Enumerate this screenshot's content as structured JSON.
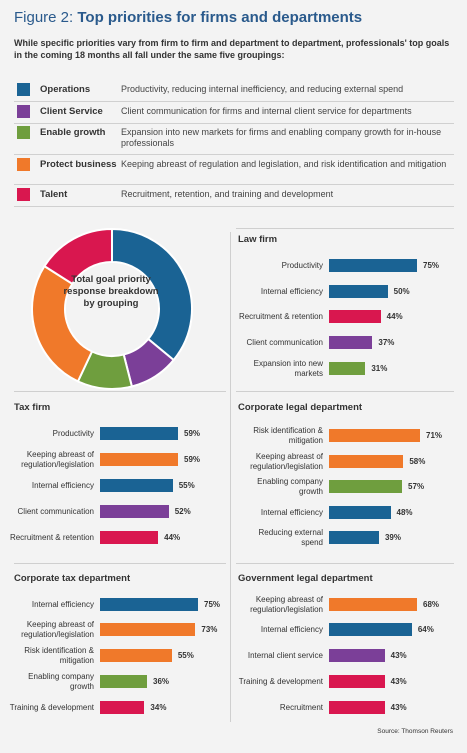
{
  "figure": {
    "prefix": "Figure 2: ",
    "title": "Top priorities for firms and departments",
    "intro": "While specific priorities vary from firm to firm and department to department, professionals' top goals in the coming 18 months all fall under the same five groupings:",
    "source": "Source: Thomson Reuters"
  },
  "colors": {
    "Operations": "#1a6394",
    "Client Service": "#7b3f98",
    "Enable growth": "#6f9e3e",
    "Protect business": "#f0792a",
    "Talent": "#d9174f"
  },
  "legend": [
    {
      "name": "Operations",
      "desc": "Productivity, reducing internal inefficiency, and reducing external spend"
    },
    {
      "name": "Client Service",
      "desc": "Client communication for firms and internal client service for departments"
    },
    {
      "name": "Enable growth",
      "desc": "Expansion into new markets for firms and enabling company growth for in-house professionals"
    },
    {
      "name": "Protect business",
      "desc": "Keeping abreast of regulation and legislation, and risk identification and mitigation"
    },
    {
      "name": "Talent",
      "desc": "Recruitment, retention, and training and development"
    }
  ],
  "chart_data": [
    {
      "type": "pie",
      "title": "Total goal priority response breakdown by grouping",
      "categories": [
        "Operations",
        "Client Service",
        "Enable growth",
        "Protect business",
        "Talent"
      ],
      "values": [
        36,
        10,
        11,
        27,
        16
      ]
    },
    {
      "type": "bar",
      "title": "Law firm",
      "categories": [
        "Productivity",
        "Internal efficiency",
        "Recruitment & retention",
        "Client communication",
        "Expansion into new markets"
      ],
      "values": [
        75,
        50,
        44,
        37,
        31
      ],
      "labels": [
        "75%",
        "50%",
        "44%",
        "37%",
        "31%"
      ],
      "groups": [
        "Operations",
        "Operations",
        "Talent",
        "Client Service",
        "Enable growth"
      ]
    },
    {
      "type": "bar",
      "title": "Tax firm",
      "categories": [
        "Productivity",
        "Keeping abreast of regulation/legislation",
        "Internal efficiency",
        "Client communication",
        "Recruitment & retention"
      ],
      "values": [
        59,
        59,
        55,
        52,
        44
      ],
      "labels": [
        "59%",
        "59%",
        "55%",
        "52%",
        "44%"
      ],
      "groups": [
        "Operations",
        "Protect business",
        "Operations",
        "Client Service",
        "Talent"
      ]
    },
    {
      "type": "bar",
      "title": "Corporate legal department",
      "categories": [
        "Risk identification & mitigation",
        "Keeping abreast of regulation/legislation",
        "Enabling company growth",
        "Internal efficiency",
        "Reducing external spend"
      ],
      "values": [
        71,
        58,
        57,
        48,
        39
      ],
      "labels": [
        "71%",
        "58%",
        "57%",
        "48%",
        "39%"
      ],
      "groups": [
        "Protect business",
        "Protect business",
        "Enable growth",
        "Operations",
        "Operations"
      ]
    },
    {
      "type": "bar",
      "title": "Corporate tax department",
      "categories": [
        "Internal efficiency",
        "Keeping abreast of regulation/legislation",
        "Risk identification & mitigation",
        "Enabling company growth",
        "Training & development"
      ],
      "values": [
        75,
        73,
        55,
        36,
        34
      ],
      "labels": [
        "75%",
        "73%",
        "55%",
        "36%",
        "34%"
      ],
      "groups": [
        "Operations",
        "Protect business",
        "Protect business",
        "Enable growth",
        "Talent"
      ]
    },
    {
      "type": "bar",
      "title": "Government legal department",
      "categories": [
        "Keeping abreast of regulation/legislation",
        "Internal efficiency",
        "Internal client service",
        "Training & development",
        "Recruitment"
      ],
      "values": [
        68,
        64,
        43,
        43,
        43
      ],
      "labels": [
        "68%",
        "64%",
        "43%",
        "43%",
        "43%"
      ],
      "groups": [
        "Protect business",
        "Operations",
        "Client Service",
        "Talent",
        "Talent"
      ]
    }
  ]
}
